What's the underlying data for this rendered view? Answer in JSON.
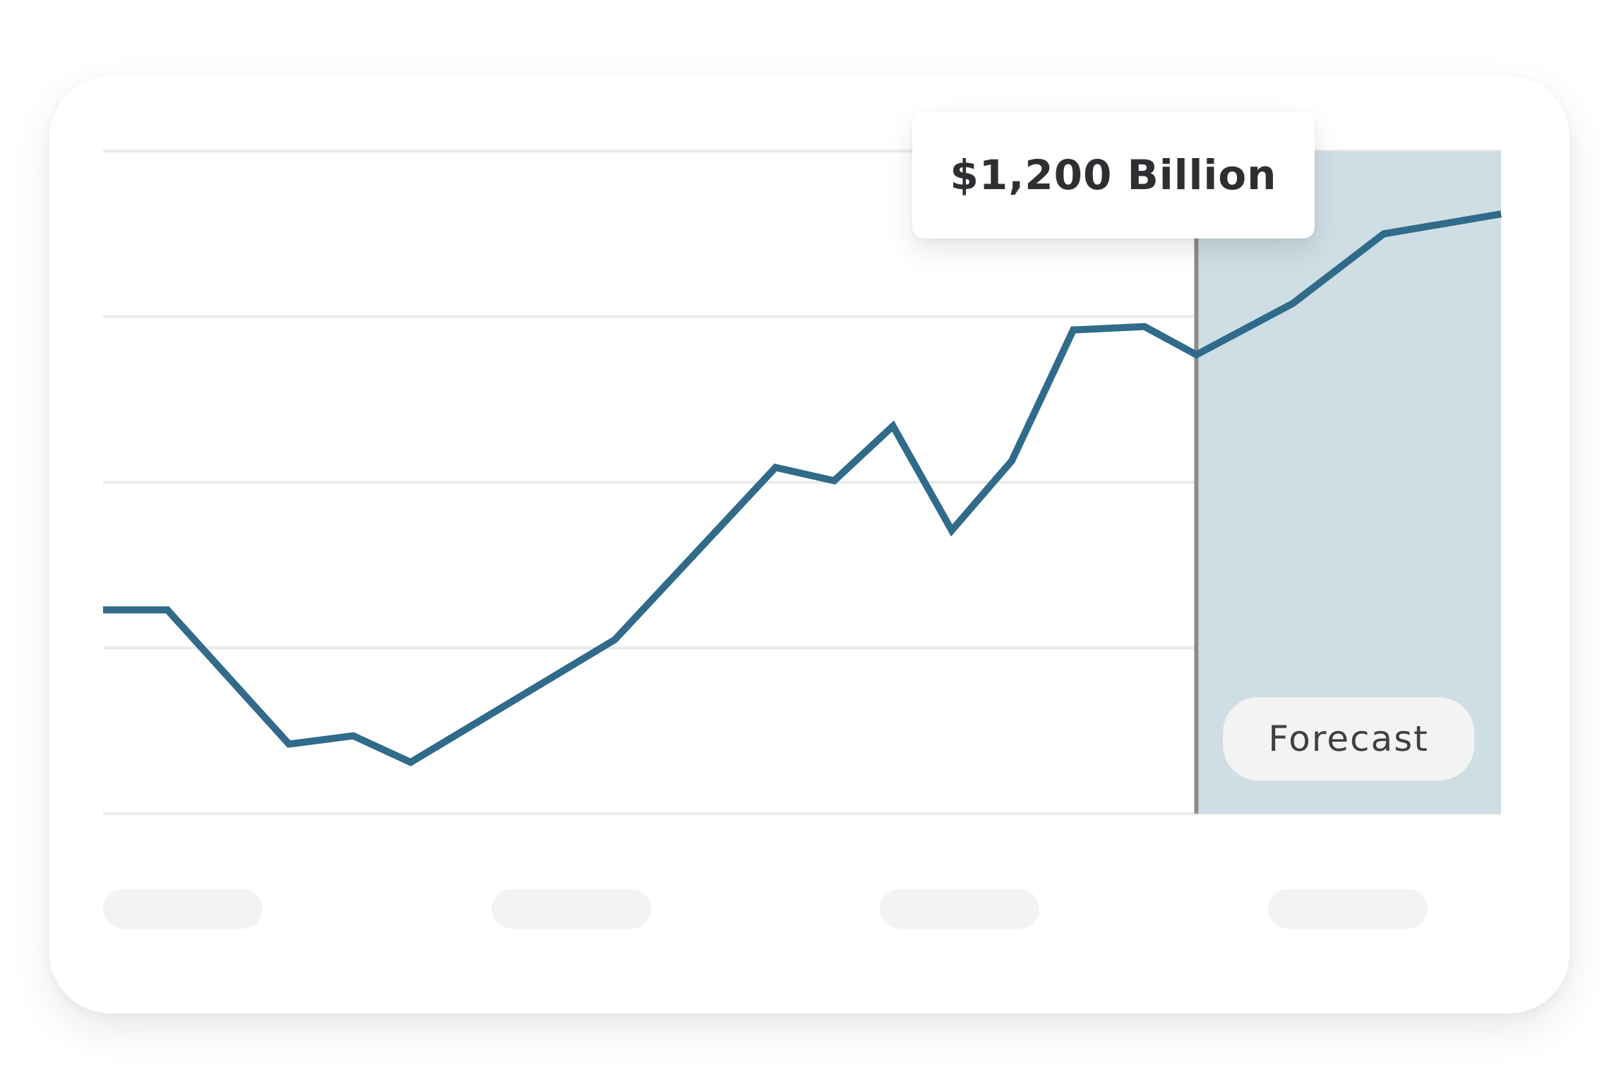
{
  "tooltip": {
    "label": "$1,200 Billion"
  },
  "forecast": {
    "label": "Forecast",
    "shade_color": "#cfdde4"
  },
  "colors": {
    "line": "#306b8a",
    "marker": "#8c8c8c",
    "grid": "#ebebeb",
    "placeholder": "#f3f3f3"
  },
  "chart_data": {
    "type": "line",
    "title": "",
    "xlabel": "",
    "ylabel": "",
    "grid": true,
    "x_tick_labels": [
      "",
      "",
      "",
      ""
    ],
    "xlim": [
      0,
      100
    ],
    "ylim": [
      0,
      4
    ],
    "forecast_start_x": 78.2,
    "series": [
      {
        "values": [
          [
            0.0,
            1.23
          ],
          [
            4.6,
            1.23
          ],
          [
            13.3,
            0.42
          ],
          [
            17.9,
            0.47
          ],
          [
            22.0,
            0.31
          ],
          [
            36.6,
            1.05
          ],
          [
            48.1,
            2.09
          ],
          [
            52.3,
            2.01
          ],
          [
            56.5,
            2.34
          ],
          [
            60.7,
            1.71
          ],
          [
            65.0,
            2.13
          ],
          [
            69.4,
            2.92
          ],
          [
            74.5,
            2.94
          ],
          [
            78.2,
            2.77
          ],
          [
            85.1,
            3.08
          ],
          [
            91.6,
            3.5
          ],
          [
            100.0,
            3.62
          ]
        ]
      }
    ]
  }
}
